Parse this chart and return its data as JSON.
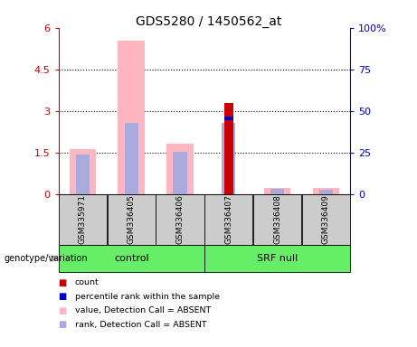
{
  "title": "GDS5280 / 1450562_at",
  "samples": [
    "GSM335971",
    "GSM336405",
    "GSM336406",
    "GSM336407",
    "GSM336408",
    "GSM336409"
  ],
  "ylim_left": [
    0,
    6
  ],
  "ylim_right": [
    0,
    100
  ],
  "yticks_left": [
    0,
    1.5,
    3.0,
    4.5,
    6.0
  ],
  "ytick_labels_left": [
    "0",
    "1.5",
    "3",
    "4.5",
    "6"
  ],
  "yticks_right": [
    0,
    25,
    50,
    75,
    100
  ],
  "ytick_labels_right": [
    "0",
    "25",
    "50",
    "75",
    "100%"
  ],
  "pink_bars": [
    1.63,
    5.55,
    1.82,
    0.0,
    0.23,
    0.22
  ],
  "red_bars": [
    0.0,
    0.0,
    0.0,
    3.28,
    0.0,
    0.0
  ],
  "blue_bars": [
    0.0,
    0.0,
    0.0,
    0.12,
    0.0,
    0.0
  ],
  "blue_bottom": [
    0.0,
    0.0,
    0.0,
    2.68,
    0.0,
    0.0
  ],
  "lb_bars": [
    1.43,
    2.58,
    1.52,
    2.58,
    0.2,
    0.18
  ],
  "pink_color": "#FFB6C1",
  "red_color": "#CC0000",
  "blue_color": "#0000CC",
  "lb_color": "#AAAADD",
  "left_axis_color": "#CC0000",
  "right_axis_color": "#0000CC",
  "grid_yticks": [
    1.5,
    3.0,
    4.5
  ],
  "group_labels": [
    "control",
    "SRF null"
  ],
  "group_starts": [
    0,
    3
  ],
  "group_counts": [
    3,
    3
  ],
  "group_color": "#66EE66",
  "sample_box_color": "#CCCCCC",
  "legend_items": [
    {
      "label": "count",
      "color": "#CC0000"
    },
    {
      "label": "percentile rank within the sample",
      "color": "#0000CC"
    },
    {
      "label": "value, Detection Call = ABSENT",
      "color": "#FFB6C1"
    },
    {
      "label": "rank, Detection Call = ABSENT",
      "color": "#AAAADD"
    }
  ],
  "genotype_label": "genotype/variation"
}
